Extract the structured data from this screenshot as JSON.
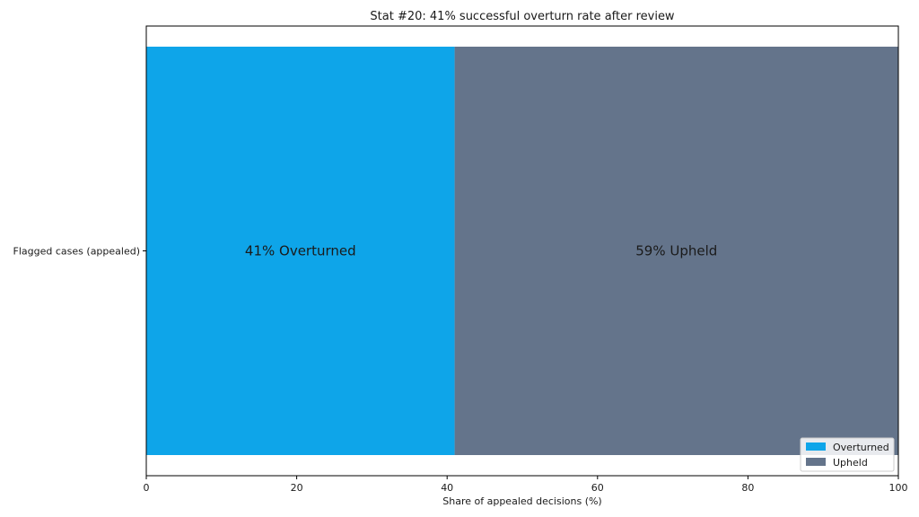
{
  "chart_data": {
    "type": "bar",
    "orientation": "horizontal",
    "stacked": true,
    "title": "Stat #20: 41% successful overturn rate after review",
    "xlabel": "Share of appealed decisions (%)",
    "ylabel": "",
    "xlim": [
      0,
      100
    ],
    "xticks": [
      "0",
      "20",
      "40",
      "60",
      "80",
      "100"
    ],
    "categories": [
      "Flagged cases (appealed)"
    ],
    "series": [
      {
        "name": "Overturned",
        "values": [
          41
        ],
        "color": "#0ea5e9",
        "label": "41% Overturned"
      },
      {
        "name": "Upheld",
        "values": [
          59
        ],
        "color": "#64748b",
        "label": "59% Upheld"
      }
    ],
    "grid": true,
    "legend_position": "bottom-right"
  }
}
